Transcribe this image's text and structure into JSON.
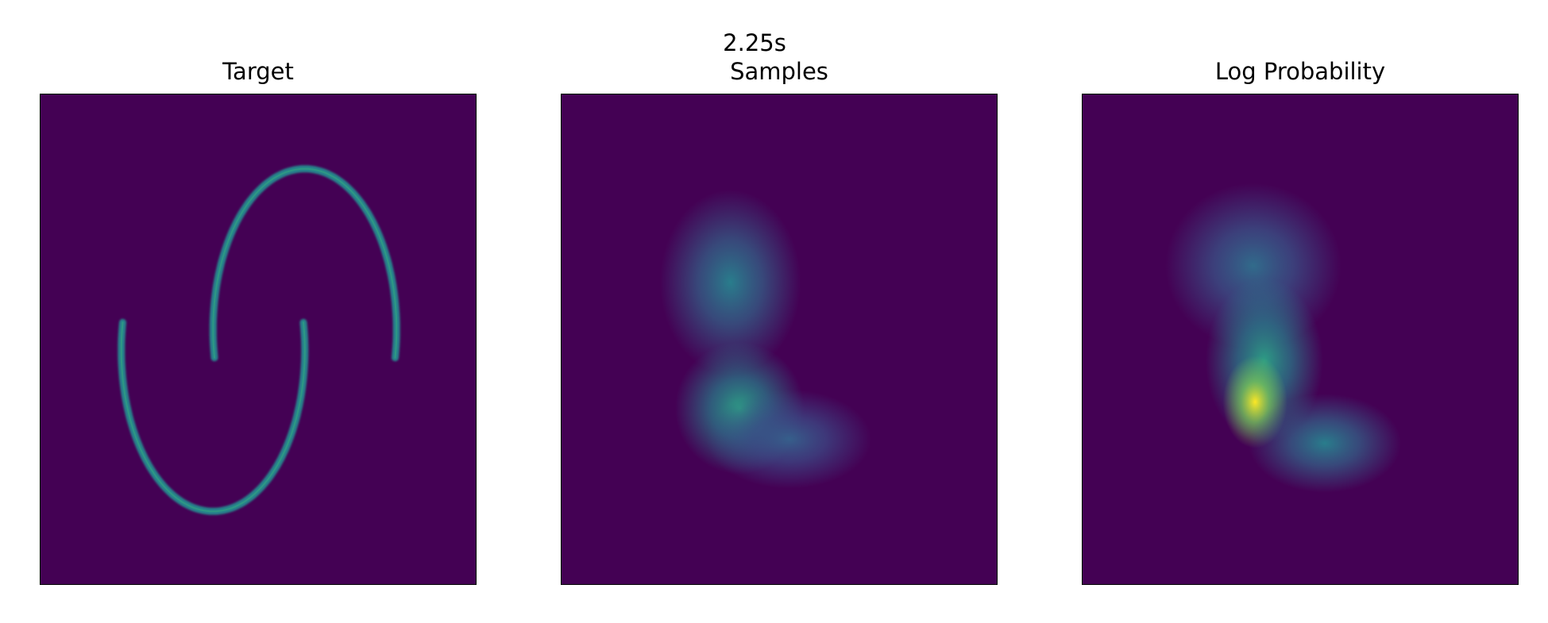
{
  "figure": {
    "suptitle": "2.25s",
    "background_color": "#440154",
    "colormap": "viridis",
    "colormap_stops": [
      "#440154",
      "#3b528b",
      "#21918c",
      "#5ec962",
      "#fde725"
    ]
  },
  "chart_data": [
    {
      "type": "heatmap",
      "title": "Target",
      "xlabel": "",
      "ylabel": "",
      "grid": false,
      "shape": "two interleaving moons",
      "structures": [
        {
          "kind": "arc",
          "cx": -0.25,
          "cy": -0.05,
          "rx": 0.5,
          "ry": 0.78,
          "start_deg": 170,
          "end_deg": 370,
          "intensity": 0.45
        },
        {
          "kind": "arc",
          "cx": 0.25,
          "cy": 0.05,
          "rx": 0.5,
          "ry": 0.78,
          "start_deg": -10,
          "end_deg": 190,
          "intensity": 0.45
        }
      ]
    },
    {
      "type": "heatmap",
      "title": "Samples",
      "xlabel": "",
      "ylabel": "",
      "grid": false,
      "structures": [
        {
          "kind": "blob",
          "x": -0.27,
          "y": 0.28,
          "sx": 0.24,
          "sy": 0.28,
          "intensity": 0.42
        },
        {
          "kind": "blob",
          "x": -0.22,
          "y": -0.33,
          "sx": 0.22,
          "sy": 0.2,
          "intensity": 0.55
        },
        {
          "kind": "blob",
          "x": 0.05,
          "y": -0.48,
          "sx": 0.28,
          "sy": 0.15,
          "intensity": 0.3
        }
      ]
    },
    {
      "type": "heatmap",
      "title": "Log Probability",
      "xlabel": "",
      "ylabel": "",
      "grid": false,
      "structures": [
        {
          "kind": "blob",
          "x": -0.26,
          "y": 0.36,
          "sx": 0.3,
          "sy": 0.25,
          "intensity": 0.35
        },
        {
          "kind": "blob",
          "x": -0.2,
          "y": -0.1,
          "sx": 0.2,
          "sy": 0.25,
          "intensity": 0.55
        },
        {
          "kind": "blob",
          "x": -0.25,
          "y": -0.3,
          "sx": 0.11,
          "sy": 0.14,
          "intensity": 1.0
        },
        {
          "kind": "blob",
          "x": 0.13,
          "y": -0.5,
          "sx": 0.26,
          "sy": 0.15,
          "intensity": 0.42
        }
      ]
    }
  ]
}
